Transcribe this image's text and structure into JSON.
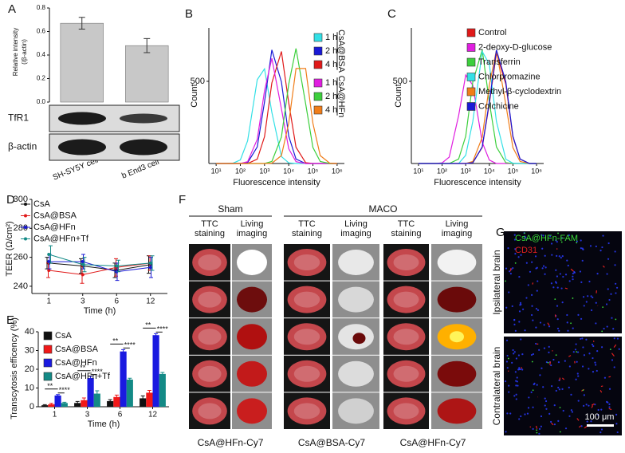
{
  "chart_data": [
    {
      "label": "A",
      "type": "bar",
      "ylabel": [
        "Relative intensity",
        "(/β-actin)"
      ],
      "categories": [
        "SH-SY5Y cell",
        "b End3 cell"
      ],
      "values": [
        0.67,
        0.48
      ],
      "errors": [
        0.05,
        0.06
      ],
      "color": "#c8c8c8",
      "ylim": [
        0,
        0.8
      ],
      "yticks": [
        {
          "value": 0,
          "label": "0.0"
        },
        0.2,
        0.4,
        0.6,
        0.8
      ]
    },
    {
      "label": "B",
      "type": "line",
      "xscale": "log",
      "xlabel": "Fluorescence intensity",
      "ylabel": "Count",
      "x": [
        10,
        20,
        50,
        100,
        200,
        500,
        1000,
        2000,
        5000,
        10000,
        20000,
        50000,
        100000,
        200000,
        500000,
        1000000
      ],
      "xlim": [
        5,
        2000000
      ],
      "xticks": [
        {
          "value": 10,
          "label": "10¹"
        },
        {
          "value": 100,
          "label": "10²"
        },
        {
          "value": 1000,
          "label": "10³"
        },
        {
          "value": 10000,
          "label": "10⁴"
        },
        {
          "value": 100000,
          "label": "10⁵"
        },
        {
          "value": 1000000,
          "label": "10⁶"
        }
      ],
      "ylim": [
        0,
        825
      ],
      "yticks": [
        500
      ],
      "legend_groups": [
        "CsA@BSA",
        "CsA@HFn"
      ],
      "series": [
        {
          "name": "1 h",
          "color": "#33e0e6",
          "values": [
            0,
            0,
            2,
            22,
            138,
            510,
            576,
            312,
            42,
            4,
            0,
            0,
            0,
            0,
            0,
            0
          ]
        },
        {
          "name": "2 h",
          "color": "#1a1ad6",
          "values": [
            0,
            0,
            0,
            0,
            5,
            101,
            374,
            691,
            497,
            166,
            27,
            0,
            0,
            0,
            0,
            0
          ]
        },
        {
          "name": "4 h",
          "color": "#e01919",
          "values": [
            0,
            0,
            0,
            0,
            0,
            26,
            163,
            490,
            682,
            369,
            99,
            5,
            0,
            0,
            0,
            0
          ]
        },
        {
          "name": "1 h",
          "color": "#e01ee0",
          "values": [
            0,
            0,
            0,
            0,
            11,
            147,
            442,
            640,
            333,
            90,
            11,
            0,
            0,
            0,
            0,
            0
          ]
        },
        {
          "name": "2 h",
          "color": "#3ccf3c",
          "values": [
            0,
            0,
            0,
            0,
            0,
            0,
            0,
            12,
            161,
            483,
            700,
            364,
            98,
            12,
            0,
            0
          ]
        },
        {
          "name": "4 h",
          "color": "#f07d19",
          "values": [
            0,
            0,
            0,
            0,
            0,
            0,
            0,
            2,
            48,
            245,
            578,
            578,
            245,
            48,
            2,
            0
          ]
        }
      ]
    },
    {
      "label": "C",
      "type": "line",
      "xscale": "log",
      "xlabel": "Fluorescence intensity",
      "ylabel": "Count",
      "x": [
        10,
        20,
        50,
        100,
        200,
        500,
        1000,
        2000,
        5000,
        10000,
        20000,
        50000,
        100000,
        200000,
        500000,
        1000000
      ],
      "xlim": [
        5,
        2000000
      ],
      "xticks": [
        {
          "value": 10,
          "label": "10¹"
        },
        {
          "value": 100,
          "label": "10²"
        },
        {
          "value": 1000,
          "label": "10³"
        },
        {
          "value": 10000,
          "label": "10⁴"
        },
        {
          "value": 100000,
          "label": "10⁵"
        },
        {
          "value": 1000000,
          "label": "10⁶"
        }
      ],
      "ylim": [
        0,
        825
      ],
      "yticks": [
        500
      ],
      "series": [
        {
          "name": "Control",
          "color": "#e01919",
          "values": [
            0,
            0,
            0,
            0,
            0,
            0,
            0,
            5,
            98,
            364,
            672,
            483,
            161,
            26,
            0,
            0
          ]
        },
        {
          "name": "2-deoxy-D-glucose",
          "color": "#e01ee0",
          "values": [
            0,
            0,
            0,
            4,
            39,
            291,
            538,
            476,
            129,
            21,
            0,
            0,
            0,
            0,
            0,
            0
          ]
        },
        {
          "name": "Transferrin",
          "color": "#3ccf3c",
          "values": [
            0,
            0,
            0,
            0,
            0,
            27,
            166,
            497,
            691,
            374,
            101,
            5,
            0,
            0,
            0,
            0
          ]
        },
        {
          "name": "Chlorpromazine",
          "color": "#33e0e6",
          "values": [
            0,
            0,
            0,
            0,
            0,
            0,
            50,
            256,
            682,
            604,
            256,
            26,
            2,
            0,
            0,
            0
          ]
        },
        {
          "name": "Methyl-β-cyclodextrin",
          "color": "#f07d19",
          "values": [
            0,
            0,
            0,
            0,
            0,
            0,
            0,
            12,
            159,
            476,
            690,
            359,
            97,
            12,
            0,
            0
          ]
        },
        {
          "name": "Colchicine",
          "color": "#1a1ad6",
          "values": [
            0,
            0,
            0,
            0,
            0,
            0,
            0,
            5,
            101,
            374,
            691,
            497,
            166,
            27,
            0,
            0
          ]
        }
      ]
    },
    {
      "label": "D",
      "type": "line",
      "xlabel": "Time (h)",
      "ylabel": "TEER (Ω/cm²)",
      "categories": [
        "1",
        "3",
        "6",
        "12"
      ],
      "ylim": [
        235,
        300
      ],
      "yticks": [
        240,
        260,
        280,
        300
      ],
      "series": [
        {
          "name": "CsA",
          "color": "#111111",
          "values": [
            256,
            254,
            251,
            255
          ],
          "errors": [
            4,
            5,
            5,
            6
          ]
        },
        {
          "name": "CsA@BSA",
          "color": "#e01919",
          "values": [
            251,
            248,
            253,
            256
          ],
          "errors": [
            5,
            6,
            6,
            5
          ]
        },
        {
          "name": "CsA@HFn",
          "color": "#1a1ad6",
          "values": [
            257,
            257,
            250,
            253
          ],
          "errors": [
            5,
            5,
            6,
            7
          ]
        },
        {
          "name": "CsA@HFn+Tf",
          "color": "#138a86",
          "values": [
            262,
            255,
            254,
            256
          ],
          "errors": [
            6,
            5,
            4,
            5
          ]
        }
      ]
    },
    {
      "label": "E",
      "type": "bar",
      "xlabel": "Time (h)",
      "ylabel": "Transcytosis efficency (%)",
      "categories": [
        "1",
        "3",
        "6",
        "12"
      ],
      "ylim": [
        0,
        40
      ],
      "yticks": [
        0,
        10,
        20,
        30,
        40
      ],
      "series": [
        {
          "name": "CsA",
          "color": "#111111",
          "values": [
            0.8,
            2,
            3,
            4.5
          ],
          "errors": [
            0.3,
            0.8,
            0.8,
            1.3
          ]
        },
        {
          "name": "CsA@BSA",
          "color": "#f01818",
          "values": [
            1.3,
            3.5,
            5.2,
            7.5
          ],
          "errors": [
            0.5,
            1.2,
            1,
            1.2
          ]
        },
        {
          "name": "CsA@HFn",
          "color": "#1a1ae0",
          "values": [
            6,
            15.3,
            29.5,
            38.2
          ],
          "errors": [
            0.5,
            1,
            1,
            0.8
          ]
        },
        {
          "name": "CsA@HFn+Tf",
          "color": "#138a86",
          "values": [
            2,
            7,
            14.5,
            17.5
          ],
          "errors": [
            0.4,
            1.5,
            0.7,
            0.8
          ]
        }
      ],
      "annotations": [
        "**",
        "****",
        "**",
        "****",
        "**",
        "****",
        "**",
        "****"
      ]
    }
  ],
  "blot": {
    "rows": [
      "TfR1",
      "β-actin"
    ]
  },
  "panel_f": {
    "label": "F",
    "groups": [
      "Sham",
      "MACO"
    ],
    "columns": [
      [
        "TTC",
        "staining"
      ],
      [
        "Living",
        "imaging"
      ],
      [
        "TTC",
        "staining"
      ],
      [
        "Living",
        "imaging"
      ],
      [
        "TTC",
        "staining"
      ],
      [
        "Living",
        "imaging"
      ]
    ],
    "captions": [
      "CsA@HFn-Cy7",
      "CsA@BSA-Cy7",
      "CsA@HFn-Cy7"
    ]
  },
  "panel_g": {
    "label": "G",
    "stains": [
      "CsA@HFn-FAM",
      "CD31"
    ],
    "stain_colors": [
      "#3adb3a",
      "#e02020"
    ],
    "rows": [
      "Ipsilateral brain",
      "Contralateral brain"
    ],
    "scale_bar": "100 μm"
  }
}
